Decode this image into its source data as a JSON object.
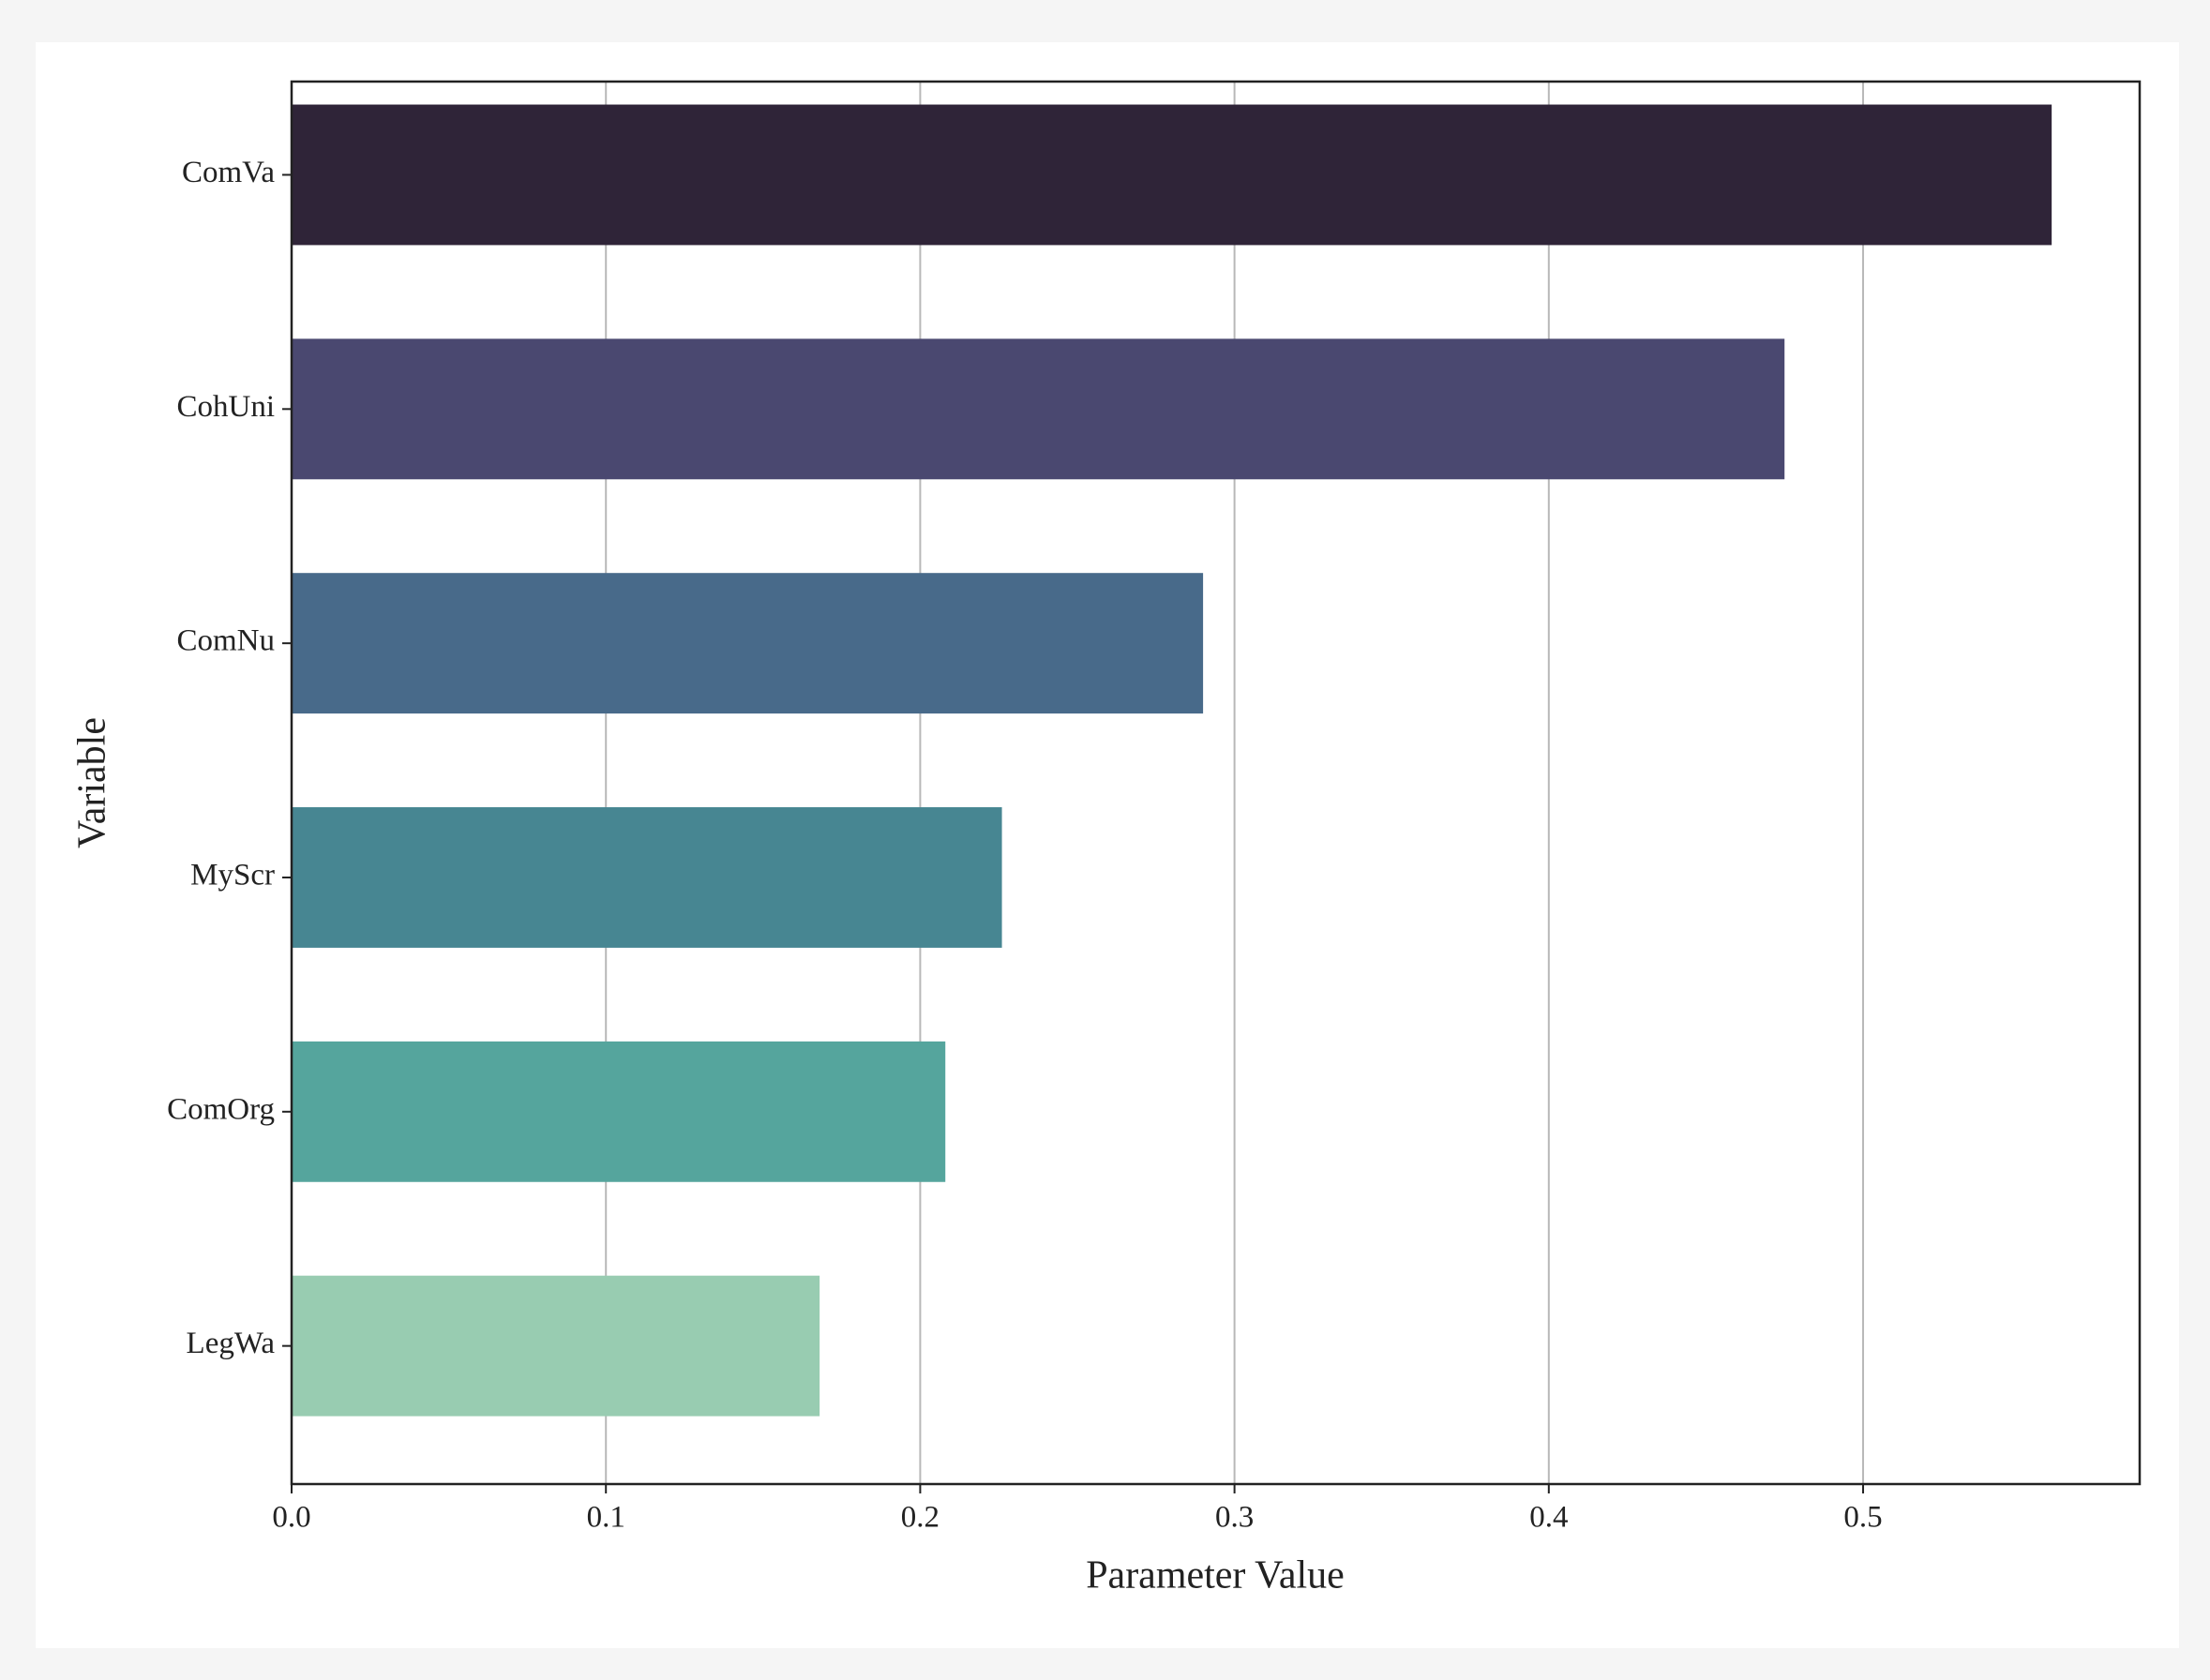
{
  "chart_data": {
    "type": "barh",
    "xlabel": "Parameter Value",
    "ylabel": "Variable",
    "categories": [
      "ComVa",
      "CohUni",
      "ComNu",
      "MyScr",
      "ComOrg",
      "LegWa"
    ],
    "values": [
      0.56,
      0.475,
      0.29,
      0.226,
      0.208,
      0.168
    ],
    "colors": [
      "#2f2438",
      "#4a4870",
      "#486a8a",
      "#478692",
      "#55a59d",
      "#98ccb1"
    ],
    "xlim": [
      0,
      0.588
    ],
    "xticks": [
      {
        "value": 0,
        "label": "0.0"
      },
      0.1,
      0.2,
      0.3,
      0.4,
      0.5
    ],
    "grid": true
  }
}
